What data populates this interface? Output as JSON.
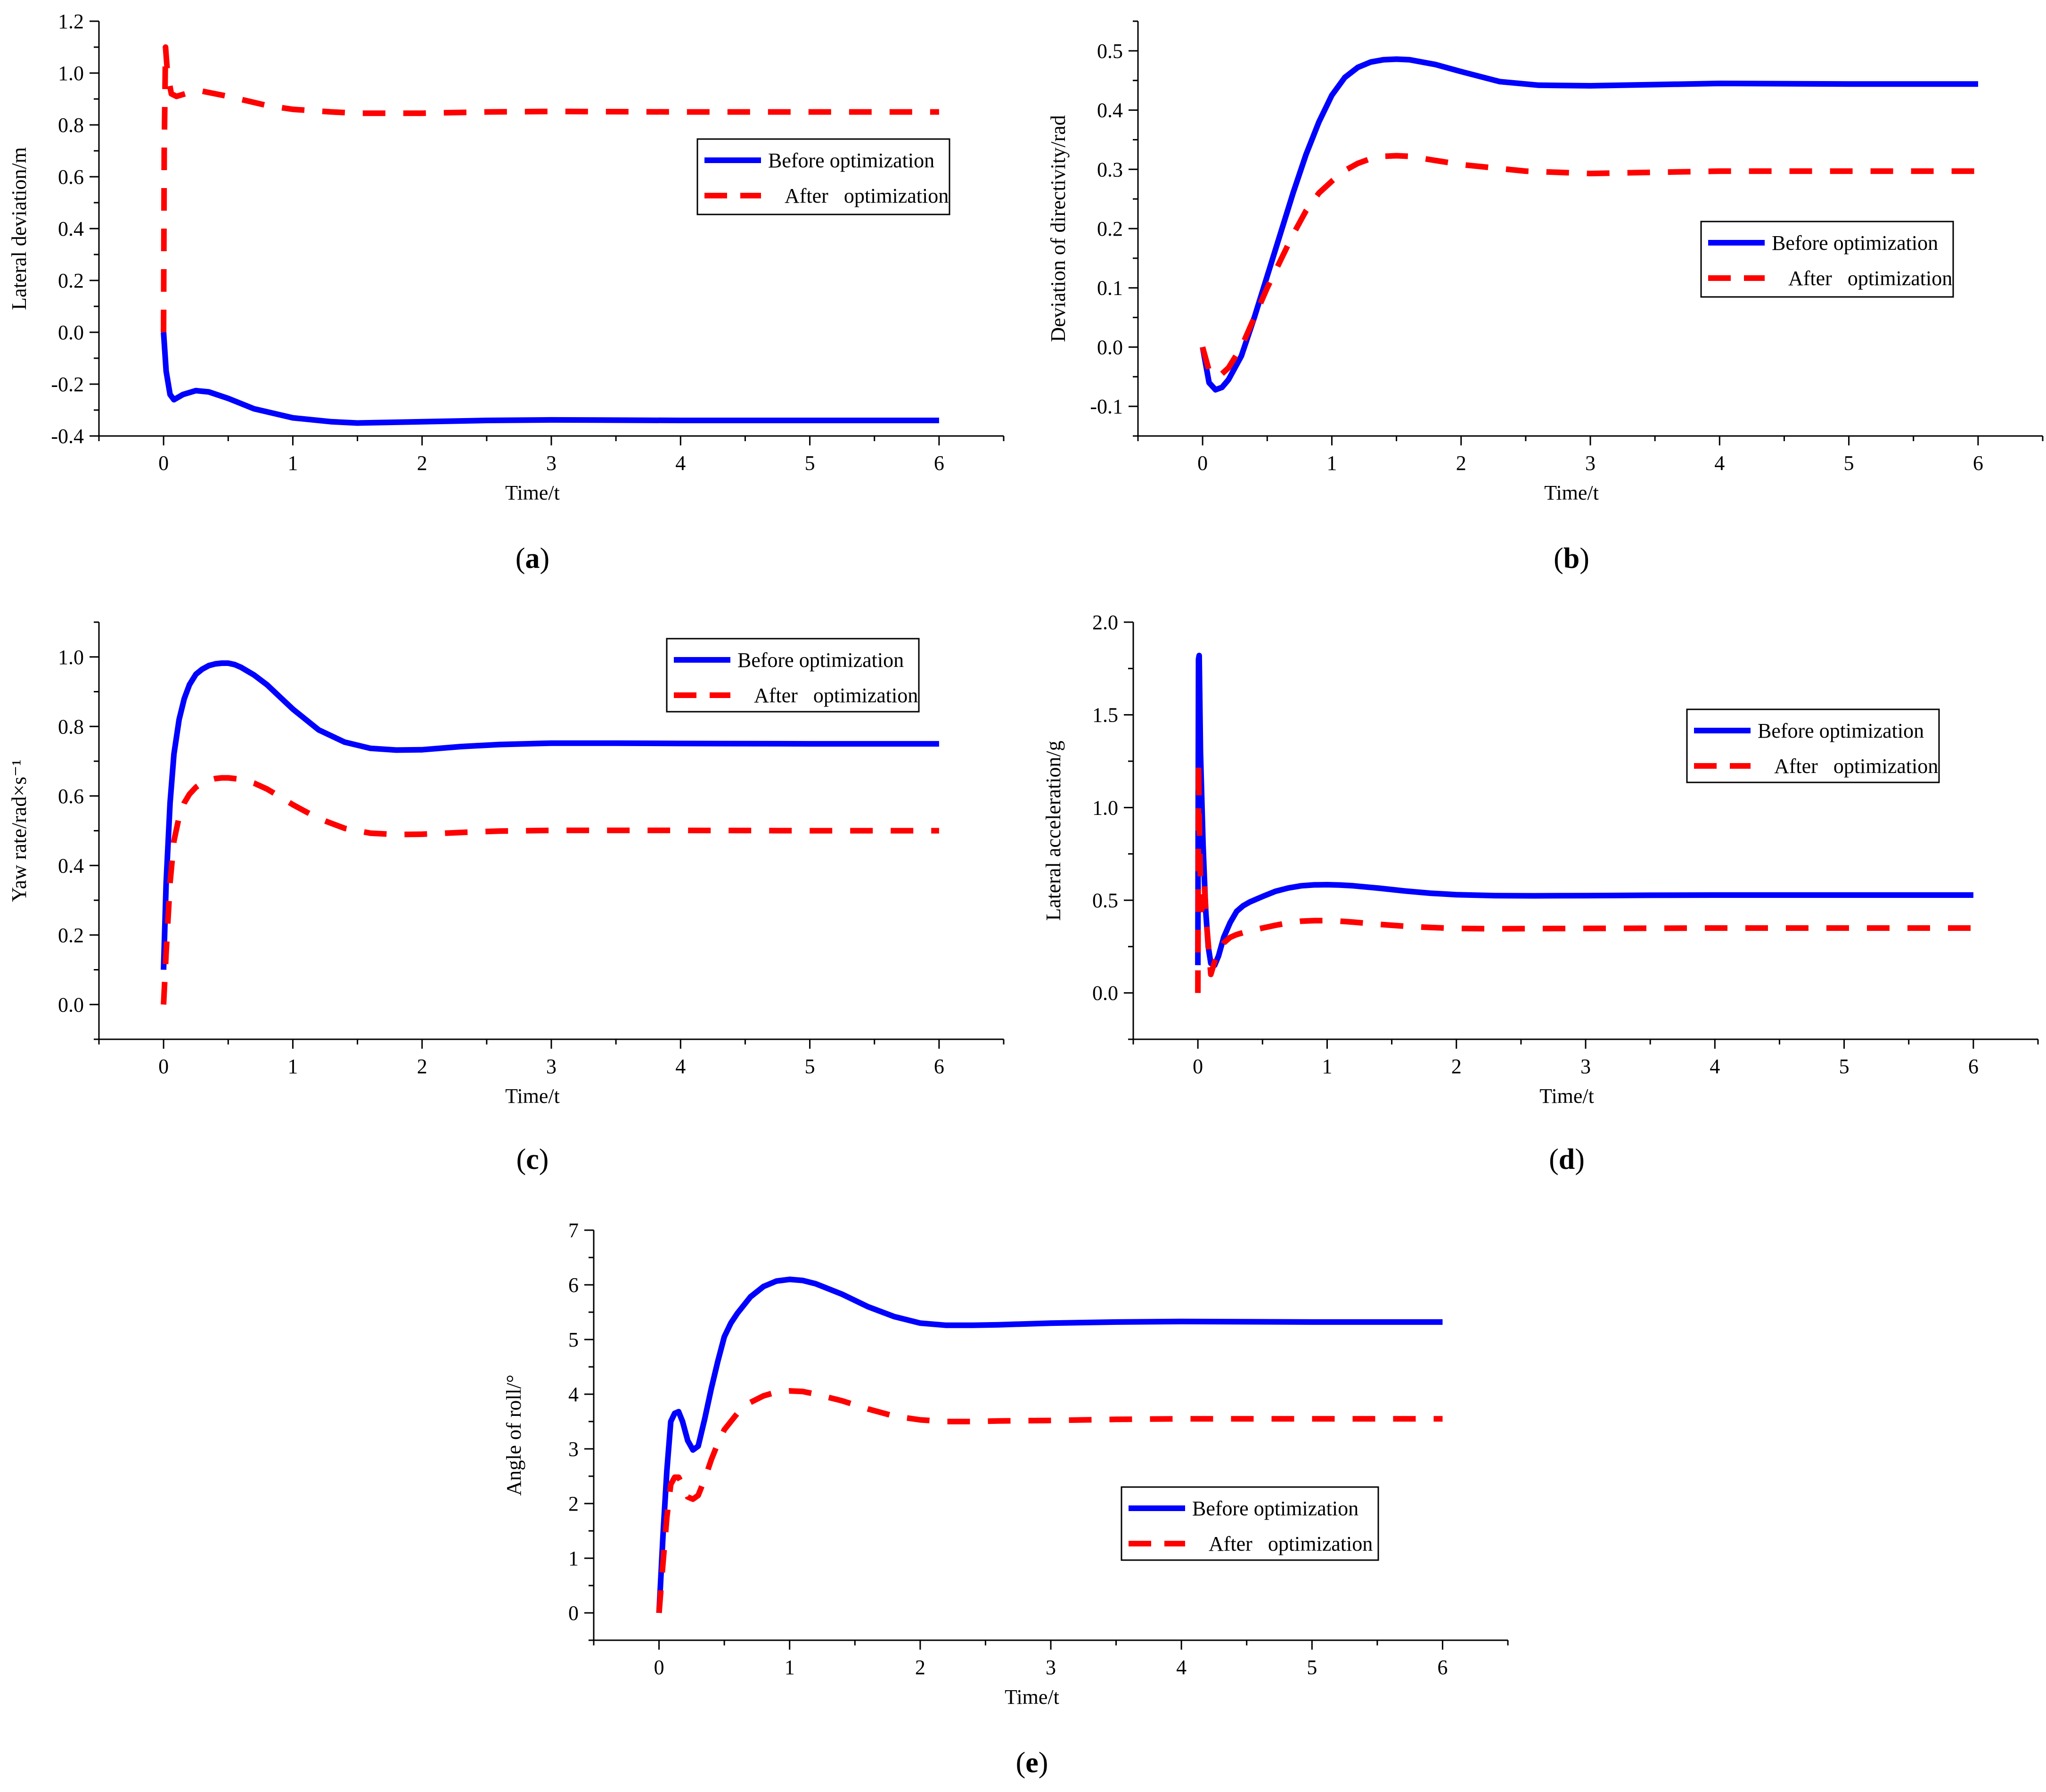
{
  "colors": {
    "before": "#0000ff",
    "after": "#ff0000",
    "axis": "#000000"
  },
  "chart_data": [
    {
      "id": "a",
      "type": "line",
      "panel_label": "(a)",
      "xlabel": "Time/t",
      "ylabel": "Lateral deviation/m",
      "xlim": [
        -0.5,
        6.5
      ],
      "ylim": [
        -0.4,
        1.2
      ],
      "xticks": [
        "0",
        "1",
        "2",
        "3",
        "4",
        "5",
        "6"
      ],
      "yticks": [
        "-0.4",
        "-0.2",
        "0.0",
        "0.2",
        "0.4",
        "0.6",
        "0.8",
        "1.0",
        "1.2"
      ],
      "legend": {
        "position": "top-right",
        "before": "Before optimization",
        "after": "After   optimization"
      },
      "series": [
        {
          "name": "Before optimization",
          "x": [
            0,
            0.02,
            0.05,
            0.08,
            0.15,
            0.25,
            0.35,
            0.5,
            0.7,
            1.0,
            1.3,
            1.5,
            2.0,
            2.5,
            3.0,
            4.0,
            5.0,
            6.0
          ],
          "y": [
            0,
            -0.15,
            -0.24,
            -0.26,
            -0.24,
            -0.225,
            -0.23,
            -0.255,
            -0.295,
            -0.33,
            -0.345,
            -0.35,
            -0.345,
            -0.34,
            -0.338,
            -0.34,
            -0.34,
            -0.34
          ]
        },
        {
          "name": "After optimization",
          "x": [
            0,
            0.005,
            0.015,
            0.03,
            0.06,
            0.1,
            0.2,
            0.3,
            0.5,
            0.8,
            1.0,
            1.3,
            1.5,
            2.0,
            2.5,
            3.0,
            4.0,
            5.0,
            6.0
          ],
          "y": [
            0,
            0.7,
            1.1,
            1.0,
            0.92,
            0.91,
            0.925,
            0.93,
            0.91,
            0.875,
            0.86,
            0.85,
            0.845,
            0.845,
            0.85,
            0.852,
            0.85,
            0.85,
            0.85
          ]
        }
      ]
    },
    {
      "id": "b",
      "type": "line",
      "panel_label": "(b)",
      "xlabel": "Time/t",
      "ylabel": "Deviation of directivity/rad",
      "xlim": [
        -0.5,
        6.5
      ],
      "ylim": [
        -0.15,
        0.55
      ],
      "xticks": [
        "0",
        "1",
        "2",
        "3",
        "4",
        "5",
        "6"
      ],
      "yticks": [
        "-0.1",
        "0.0",
        "0.1",
        "0.2",
        "0.3",
        "0.4",
        "0.5"
      ],
      "legend": {
        "position": "middle-right",
        "before": "Before optimization",
        "after": "After   optimization"
      },
      "series": [
        {
          "name": "Before optimization",
          "x": [
            0,
            0.05,
            0.1,
            0.15,
            0.2,
            0.3,
            0.4,
            0.5,
            0.6,
            0.7,
            0.8,
            0.9,
            1.0,
            1.1,
            1.2,
            1.3,
            1.4,
            1.5,
            1.6,
            1.8,
            2.0,
            2.3,
            2.6,
            3.0,
            3.5,
            4.0,
            5.0,
            6.0
          ],
          "y": [
            0,
            -0.06,
            -0.072,
            -0.068,
            -0.055,
            -0.015,
            0.05,
            0.12,
            0.19,
            0.26,
            0.325,
            0.38,
            0.425,
            0.455,
            0.472,
            0.481,
            0.485,
            0.486,
            0.485,
            0.477,
            0.465,
            0.448,
            0.442,
            0.441,
            0.443,
            0.445,
            0.444,
            0.444
          ]
        },
        {
          "name": "After optimization",
          "x": [
            0,
            0.05,
            0.1,
            0.15,
            0.2,
            0.3,
            0.4,
            0.5,
            0.6,
            0.7,
            0.8,
            0.9,
            1.0,
            1.1,
            1.2,
            1.3,
            1.4,
            1.5,
            1.6,
            1.8,
            2.0,
            2.5,
            3.0,
            3.5,
            4.0,
            5.0,
            6.0
          ],
          "y": [
            0,
            -0.04,
            -0.05,
            -0.045,
            -0.035,
            0,
            0.05,
            0.1,
            0.145,
            0.19,
            0.23,
            0.26,
            0.28,
            0.298,
            0.31,
            0.318,
            0.322,
            0.323,
            0.322,
            0.315,
            0.308,
            0.297,
            0.293,
            0.295,
            0.297,
            0.297,
            0.297
          ]
        }
      ]
    },
    {
      "id": "c",
      "type": "line",
      "panel_label": "(c)",
      "xlabel": "Time/t",
      "ylabel": "Yaw rate/rad×s⁻¹",
      "xlim": [
        -0.5,
        6.5
      ],
      "ylim": [
        -0.1,
        1.1
      ],
      "xticks": [
        "0",
        "1",
        "2",
        "3",
        "4",
        "5",
        "6"
      ],
      "yticks": [
        "0.0",
        "0.2",
        "0.4",
        "0.6",
        "0.8",
        "1.0"
      ],
      "legend": {
        "position": "top-right",
        "before": "Before optimization",
        "after": "After   optimization"
      },
      "series": [
        {
          "name": "Before optimization",
          "x": [
            0,
            0.02,
            0.05,
            0.08,
            0.12,
            0.16,
            0.2,
            0.25,
            0.3,
            0.35,
            0.4,
            0.45,
            0.5,
            0.55,
            0.6,
            0.7,
            0.8,
            0.9,
            1.0,
            1.2,
            1.4,
            1.6,
            1.8,
            2.0,
            2.3,
            2.6,
            3.0,
            3.5,
            4.0,
            5.0,
            6.0
          ],
          "y": [
            0.1,
            0.35,
            0.58,
            0.72,
            0.82,
            0.88,
            0.92,
            0.95,
            0.965,
            0.975,
            0.98,
            0.982,
            0.982,
            0.978,
            0.97,
            0.948,
            0.92,
            0.885,
            0.85,
            0.79,
            0.755,
            0.737,
            0.732,
            0.733,
            0.742,
            0.748,
            0.752,
            0.752,
            0.751,
            0.75,
            0.75
          ]
        },
        {
          "name": "After optimization",
          "x": [
            0,
            0.02,
            0.05,
            0.08,
            0.12,
            0.16,
            0.2,
            0.25,
            0.3,
            0.35,
            0.4,
            0.45,
            0.5,
            0.6,
            0.7,
            0.8,
            0.9,
            1.0,
            1.2,
            1.4,
            1.6,
            1.8,
            2.0,
            2.3,
            2.6,
            3.0,
            3.5,
            4.0,
            5.0,
            6.0
          ],
          "y": [
            0,
            0.15,
            0.35,
            0.47,
            0.54,
            0.58,
            0.605,
            0.625,
            0.638,
            0.645,
            0.65,
            0.652,
            0.652,
            0.648,
            0.637,
            0.62,
            0.598,
            0.575,
            0.535,
            0.507,
            0.493,
            0.489,
            0.49,
            0.495,
            0.499,
            0.501,
            0.501,
            0.501,
            0.5,
            0.5
          ]
        }
      ]
    },
    {
      "id": "d",
      "type": "line",
      "panel_label": "(d)",
      "xlabel": "Time/t",
      "ylabel": "Lateral acceleration/g",
      "xlim": [
        -0.5,
        6.5
      ],
      "ylim": [
        -0.25,
        2.0
      ],
      "xticks": [
        "0",
        "1",
        "2",
        "3",
        "4",
        "5",
        "6"
      ],
      "yticks": [
        "0.0",
        "0.5",
        "1.0",
        "1.5",
        "2.0"
      ],
      "legend": {
        "position": "middle-right",
        "before": "Before optimization",
        "after": "After   optimization"
      },
      "series": [
        {
          "name": "Before optimization",
          "x": [
            0,
            0.005,
            0.01,
            0.02,
            0.04,
            0.06,
            0.08,
            0.1,
            0.13,
            0.16,
            0.2,
            0.25,
            0.3,
            0.35,
            0.4,
            0.5,
            0.6,
            0.7,
            0.8,
            0.9,
            1.0,
            1.1,
            1.2,
            1.4,
            1.6,
            1.8,
            2.0,
            2.3,
            2.6,
            3.0,
            3.5,
            4.0,
            5.0,
            6.0
          ],
          "y": [
            0.15,
            1.8,
            1.82,
            1.3,
            0.8,
            0.45,
            0.25,
            0.16,
            0.15,
            0.2,
            0.3,
            0.38,
            0.44,
            0.47,
            0.49,
            0.52,
            0.548,
            0.566,
            0.578,
            0.583,
            0.584,
            0.582,
            0.578,
            0.565,
            0.55,
            0.538,
            0.53,
            0.525,
            0.524,
            0.525,
            0.527,
            0.528,
            0.528,
            0.528
          ]
        },
        {
          "name": "After optimization",
          "x": [
            0,
            0.005,
            0.01,
            0.02,
            0.03,
            0.05,
            0.07,
            0.1,
            0.13,
            0.16,
            0.2,
            0.25,
            0.3,
            0.4,
            0.5,
            0.6,
            0.7,
            0.8,
            0.9,
            1.0,
            1.1,
            1.2,
            1.4,
            1.6,
            1.8,
            2.0,
            2.3,
            2.6,
            3.0,
            3.5,
            4.0,
            5.0,
            6.0
          ],
          "y": [
            0,
            1.25,
            0.95,
            0.6,
            0.45,
            0.58,
            0.35,
            0.1,
            0.17,
            0.22,
            0.27,
            0.3,
            0.315,
            0.335,
            0.35,
            0.365,
            0.378,
            0.387,
            0.39,
            0.39,
            0.387,
            0.382,
            0.37,
            0.36,
            0.353,
            0.348,
            0.346,
            0.347,
            0.348,
            0.349,
            0.35,
            0.35,
            0.35
          ]
        }
      ]
    },
    {
      "id": "e",
      "type": "line",
      "panel_label": "(e)",
      "xlabel": "Time/t",
      "ylabel": "Angle of roll/°",
      "xlim": [
        -0.5,
        6.5
      ],
      "ylim": [
        -0.5,
        7
      ],
      "xticks": [
        "0",
        "1",
        "2",
        "3",
        "4",
        "5",
        "6"
      ],
      "yticks": [
        "0",
        "1",
        "2",
        "3",
        "4",
        "5",
        "6",
        "7"
      ],
      "legend": {
        "position": "bottom-right",
        "before": "Before optimization",
        "after": "After   optimization"
      },
      "series": [
        {
          "name": "Before optimization",
          "x": [
            0,
            0.03,
            0.06,
            0.09,
            0.12,
            0.15,
            0.18,
            0.22,
            0.26,
            0.3,
            0.35,
            0.4,
            0.45,
            0.5,
            0.55,
            0.6,
            0.7,
            0.8,
            0.9,
            1.0,
            1.1,
            1.2,
            1.4,
            1.6,
            1.8,
            2.0,
            2.2,
            2.4,
            2.6,
            3.0,
            3.5,
            4.0,
            5.0,
            6.0
          ],
          "y": [
            0,
            1.4,
            2.6,
            3.5,
            3.65,
            3.68,
            3.5,
            3.15,
            2.98,
            3.05,
            3.55,
            4.1,
            4.6,
            5.05,
            5.3,
            5.48,
            5.78,
            5.97,
            6.07,
            6.1,
            6.08,
            6.02,
            5.83,
            5.6,
            5.42,
            5.3,
            5.26,
            5.26,
            5.27,
            5.3,
            5.32,
            5.33,
            5.32,
            5.32
          ]
        },
        {
          "name": "After optimization",
          "x": [
            0,
            0.03,
            0.06,
            0.09,
            0.12,
            0.15,
            0.18,
            0.22,
            0.26,
            0.3,
            0.35,
            0.4,
            0.45,
            0.5,
            0.6,
            0.7,
            0.8,
            0.9,
            1.0,
            1.1,
            1.2,
            1.4,
            1.6,
            1.8,
            2.0,
            2.2,
            2.4,
            2.6,
            3.0,
            3.5,
            4.0,
            5.0,
            6.0
          ],
          "y": [
            0,
            0.9,
            1.75,
            2.35,
            2.48,
            2.48,
            2.35,
            2.12,
            2.08,
            2.15,
            2.45,
            2.8,
            3.1,
            3.35,
            3.65,
            3.85,
            3.97,
            4.04,
            4.06,
            4.05,
            4.0,
            3.88,
            3.73,
            3.6,
            3.53,
            3.5,
            3.5,
            3.51,
            3.52,
            3.54,
            3.55,
            3.55,
            3.55
          ]
        }
      ]
    }
  ]
}
